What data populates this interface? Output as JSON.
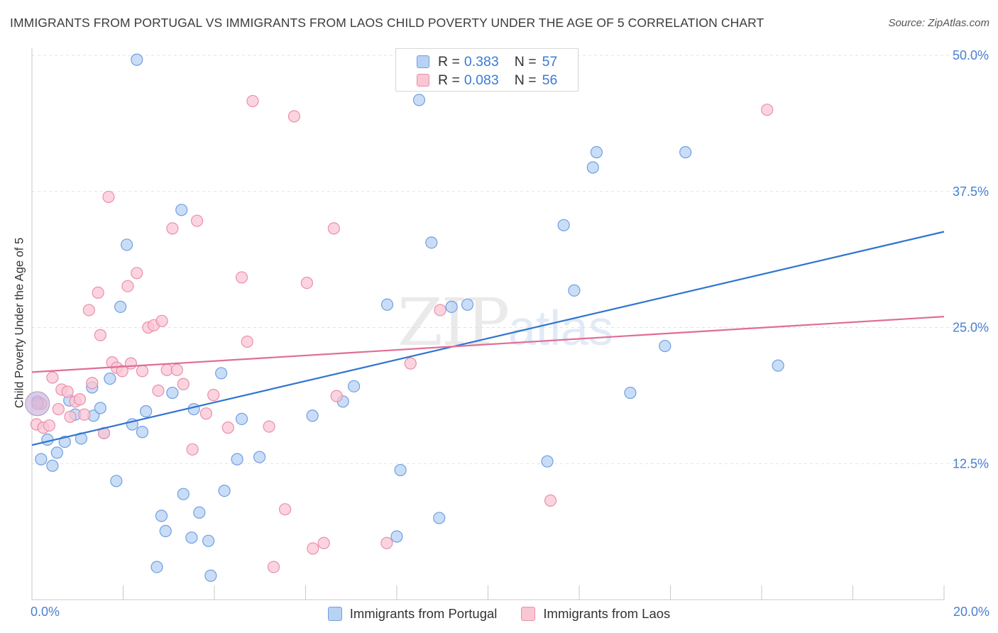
{
  "title": "IMMIGRANTS FROM PORTUGAL VS IMMIGRANTS FROM LAOS CHILD POVERTY UNDER THE AGE OF 5 CORRELATION CHART",
  "source": "Source: ZipAtlas.com",
  "watermark": {
    "part1": "ZIP",
    "part2": "atlas"
  },
  "stats": [
    {
      "r_label": "R =",
      "r_value": "0.383",
      "n_label": "N =",
      "n_value": "57"
    },
    {
      "r_label": "R =",
      "r_value": "0.083",
      "n_label": "N =",
      "n_value": "56"
    }
  ],
  "colors": {
    "portugal_fill": "#b8d2f4",
    "portugal_stroke": "#6f9fe0",
    "portugal_line": "#2f74d0",
    "laos_fill": "#f9c6d4",
    "laos_stroke": "#ea8fab",
    "laos_line": "#e06d97",
    "tick_label": "#4a7fd0",
    "grid": "#e3e3e3"
  },
  "chart_data": {
    "type": "scatter",
    "title": "IMMIGRANTS FROM PORTUGAL VS IMMIGRANTS FROM LAOS CHILD POVERTY UNDER THE AGE OF 5 CORRELATION CHART",
    "xlabel": "",
    "ylabel": "Child Poverty Under the Age of 5",
    "xlim": [
      0,
      20
    ],
    "ylim": [
      0,
      50
    ],
    "x_tick_labels": [
      "0.0%",
      "20.0%"
    ],
    "y_ticks": [
      12.5,
      25,
      37.5,
      50
    ],
    "y_tick_labels": [
      "12.5%",
      "25.0%",
      "37.5%",
      "50.0%"
    ],
    "grid": true,
    "legend_position": "bottom",
    "series": [
      {
        "name": "Immigrants from Portugal",
        "r": 0.383,
        "n": 57,
        "trend": [
          [
            0,
            14.2
          ],
          [
            20,
            33.8
          ]
        ],
        "points": [
          [
            0.12,
            18.2
          ],
          [
            0.2,
            12.9
          ],
          [
            0.34,
            14.7
          ],
          [
            0.45,
            12.3
          ],
          [
            0.55,
            13.5
          ],
          [
            0.72,
            14.5
          ],
          [
            0.82,
            18.3
          ],
          [
            1.08,
            14.8
          ],
          [
            0.95,
            17.0
          ],
          [
            1.35,
            16.9
          ],
          [
            1.5,
            17.6
          ],
          [
            1.32,
            19.5
          ],
          [
            1.58,
            15.3
          ],
          [
            1.71,
            20.3
          ],
          [
            1.85,
            10.9
          ],
          [
            1.94,
            26.9
          ],
          [
            2.08,
            32.6
          ],
          [
            2.2,
            16.1
          ],
          [
            2.42,
            15.4
          ],
          [
            2.5,
            17.3
          ],
          [
            2.84,
            7.7
          ],
          [
            2.93,
            6.3
          ],
          [
            2.74,
            3.0
          ],
          [
            3.08,
            19.0
          ],
          [
            3.28,
            35.8
          ],
          [
            3.32,
            9.7
          ],
          [
            3.5,
            5.7
          ],
          [
            3.55,
            17.5
          ],
          [
            3.67,
            8.0
          ],
          [
            3.87,
            5.4
          ],
          [
            3.92,
            2.2
          ],
          [
            4.15,
            20.8
          ],
          [
            4.22,
            10.0
          ],
          [
            4.5,
            12.9
          ],
          [
            4.6,
            16.6
          ],
          [
            4.99,
            13.1
          ],
          [
            6.15,
            16.9
          ],
          [
            6.82,
            18.2
          ],
          [
            7.06,
            19.6
          ],
          [
            7.79,
            27.1
          ],
          [
            8.08,
            11.9
          ],
          [
            8.0,
            5.8
          ],
          [
            8.49,
            45.9
          ],
          [
            8.76,
            32.8
          ],
          [
            8.93,
            7.5
          ],
          [
            9.2,
            26.9
          ],
          [
            9.55,
            27.1
          ],
          [
            2.3,
            49.6
          ],
          [
            11.3,
            12.7
          ],
          [
            11.66,
            34.4
          ],
          [
            11.89,
            28.4
          ],
          [
            12.3,
            39.7
          ],
          [
            12.38,
            41.1
          ],
          [
            13.12,
            19.0
          ],
          [
            13.88,
            23.3
          ],
          [
            14.33,
            41.1
          ],
          [
            16.36,
            21.5
          ]
        ]
      },
      {
        "name": "Immigrants from Laos",
        "r": 0.083,
        "n": 56,
        "trend": [
          [
            0,
            20.9
          ],
          [
            20,
            26.0
          ]
        ],
        "points": [
          [
            0.1,
            16.1
          ],
          [
            0.25,
            15.8
          ],
          [
            0.38,
            16.0
          ],
          [
            0.45,
            20.4
          ],
          [
            0.58,
            17.5
          ],
          [
            0.65,
            19.3
          ],
          [
            0.78,
            19.1
          ],
          [
            0.84,
            16.8
          ],
          [
            0.95,
            18.2
          ],
          [
            1.05,
            18.4
          ],
          [
            1.15,
            17.0
          ],
          [
            1.25,
            26.6
          ],
          [
            1.32,
            19.9
          ],
          [
            1.45,
            28.2
          ],
          [
            1.5,
            24.3
          ],
          [
            1.58,
            15.3
          ],
          [
            1.68,
            37.0
          ],
          [
            1.76,
            21.8
          ],
          [
            1.86,
            21.3
          ],
          [
            1.98,
            21.0
          ],
          [
            2.1,
            28.8
          ],
          [
            2.17,
            21.7
          ],
          [
            2.3,
            30.0
          ],
          [
            2.42,
            21.0
          ],
          [
            2.55,
            25.0
          ],
          [
            2.67,
            25.2
          ],
          [
            2.77,
            19.2
          ],
          [
            2.85,
            25.6
          ],
          [
            2.96,
            21.1
          ],
          [
            3.08,
            34.1
          ],
          [
            3.18,
            21.1
          ],
          [
            3.32,
            19.8
          ],
          [
            3.52,
            13.8
          ],
          [
            3.62,
            34.8
          ],
          [
            3.82,
            17.1
          ],
          [
            3.98,
            18.8
          ],
          [
            4.3,
            15.8
          ],
          [
            4.6,
            29.6
          ],
          [
            4.72,
            23.7
          ],
          [
            4.84,
            45.8
          ],
          [
            5.2,
            15.9
          ],
          [
            5.3,
            3.0
          ],
          [
            5.55,
            8.3
          ],
          [
            5.75,
            44.4
          ],
          [
            6.03,
            29.1
          ],
          [
            6.16,
            4.7
          ],
          [
            6.4,
            5.2
          ],
          [
            6.62,
            34.1
          ],
          [
            6.68,
            18.7
          ],
          [
            7.78,
            5.2
          ],
          [
            8.3,
            21.7
          ],
          [
            8.95,
            26.6
          ],
          [
            11.37,
            9.1
          ],
          [
            16.12,
            45.0
          ],
          [
            0.2,
            18.0
          ],
          [
            0.12,
            18.0
          ]
        ]
      }
    ]
  },
  "legend": [
    {
      "label": "Immigrants from Portugal"
    },
    {
      "label": "Immigrants from Laos"
    }
  ]
}
